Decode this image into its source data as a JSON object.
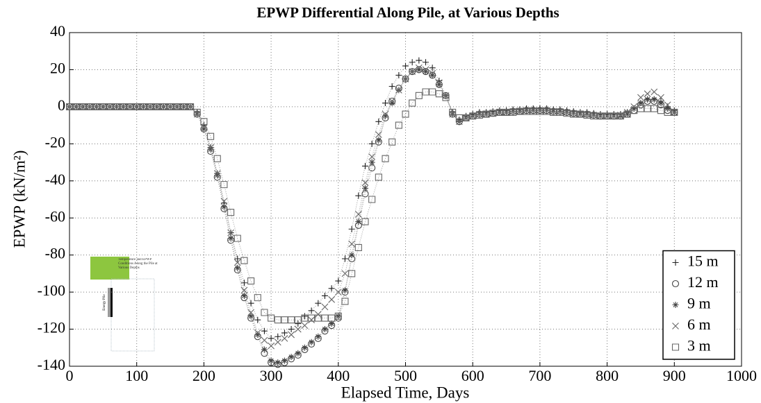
{
  "chart_data": {
    "type": "scatter_line",
    "title": "EPWP Differential Along Pile, at Various Depths",
    "xlabel": "Elapsed Time, Days",
    "ylabel": "EPWP (kN/m²)",
    "xlim": [
      0,
      1000
    ],
    "xticks": [
      0,
      100,
      200,
      300,
      400,
      500,
      600,
      700,
      800,
      900,
      1000
    ],
    "ylim": [
      -140,
      40
    ],
    "yticks": [
      -140,
      -120,
      -100,
      -80,
      -60,
      -40,
      -20,
      0,
      20,
      40
    ],
    "grid": true,
    "legend": "lower right",
    "x": [
      0,
      10,
      20,
      30,
      40,
      50,
      60,
      70,
      80,
      90,
      100,
      110,
      120,
      130,
      140,
      150,
      160,
      170,
      180,
      190,
      200,
      210,
      220,
      230,
      240,
      250,
      260,
      270,
      280,
      290,
      300,
      310,
      320,
      330,
      340,
      350,
      360,
      370,
      380,
      390,
      400,
      410,
      420,
      430,
      440,
      450,
      460,
      470,
      480,
      490,
      500,
      510,
      520,
      530,
      540,
      550,
      560,
      570,
      580,
      590,
      600,
      610,
      620,
      630,
      640,
      650,
      660,
      670,
      680,
      690,
      700,
      710,
      720,
      730,
      740,
      750,
      760,
      770,
      780,
      790,
      800,
      810,
      820,
      830,
      840,
      850,
      860,
      870,
      880,
      890,
      900
    ],
    "series": [
      {
        "name": "15 m",
        "color": "#222222",
        "marker": "plus",
        "values": [
          0,
          0,
          0,
          0,
          0,
          0,
          0,
          0,
          0,
          0,
          0,
          0,
          0,
          0,
          0,
          0,
          0,
          0,
          0,
          -3,
          -10,
          -22,
          -36,
          -52,
          -68,
          -82,
          -95,
          -106,
          -115,
          -121,
          -125,
          -124,
          -122,
          -120,
          -117,
          -113,
          -110,
          -106,
          -102,
          -98,
          -94,
          -82,
          -66,
          -48,
          -32,
          -20,
          -8,
          2,
          11,
          17,
          22,
          24,
          25,
          24,
          21,
          14,
          6,
          -3,
          -7,
          -5,
          -4,
          -3,
          -3,
          -2.5,
          -2,
          -2,
          -1.5,
          -1.5,
          -1,
          -1,
          -1,
          -1,
          -1.5,
          -1.5,
          -2,
          -2.5,
          -3,
          -3,
          -3.5,
          -4,
          -4,
          -4,
          -4,
          -3,
          -1,
          2,
          4,
          4,
          3,
          0,
          -2
        ]
      },
      {
        "name": "12 m",
        "color": "#444444",
        "marker": "circle",
        "values": [
          0,
          0,
          0,
          0,
          0,
          0,
          0,
          0,
          0,
          0,
          0,
          0,
          0,
          0,
          0,
          0,
          0,
          0,
          0,
          -4,
          -12,
          -24,
          -38,
          -55,
          -72,
          -88,
          -103,
          -114,
          -124,
          -133,
          -138,
          -139,
          -138,
          -136,
          -134,
          -131,
          -128,
          -125,
          -121,
          -118,
          -114,
          -100,
          -82,
          -64,
          -47,
          -33,
          -19,
          -6,
          3,
          10,
          15,
          19,
          20,
          19,
          17,
          12,
          6,
          -4,
          -8,
          -6,
          -5,
          -4,
          -4,
          -3.5,
          -3,
          -3,
          -2.5,
          -2.5,
          -2,
          -2,
          -2,
          -2,
          -2.5,
          -2.5,
          -3,
          -3.5,
          -4,
          -4,
          -4.5,
          -5,
          -5,
          -5,
          -5,
          -4,
          -2,
          1,
          3,
          3,
          1,
          -2,
          -3
        ]
      },
      {
        "name": "9 m",
        "color": "#444444",
        "marker": "star",
        "values": [
          0,
          0,
          0,
          0,
          0,
          0,
          0,
          0,
          0,
          0,
          0,
          0,
          0,
          0,
          0,
          0,
          0,
          0,
          0,
          -4,
          -12,
          -23,
          -37,
          -54,
          -71,
          -87,
          -102,
          -113,
          -123,
          -131,
          -137,
          -138,
          -137,
          -135,
          -133,
          -130,
          -127,
          -124,
          -120,
          -117,
          -113,
          -99,
          -80,
          -62,
          -44,
          -30,
          -18,
          -5,
          2,
          9,
          15,
          19,
          20,
          19,
          17,
          12,
          6,
          -4,
          -8,
          -6,
          -5,
          -4,
          -4,
          -3.5,
          -3,
          -3,
          -2.5,
          -2.5,
          -2,
          -2,
          -2,
          -2,
          -2.5,
          -2.5,
          -3,
          -3.5,
          -4,
          -4,
          -4.5,
          -5,
          -5,
          -5,
          -5,
          -4,
          -1,
          2,
          4,
          4,
          2,
          -1,
          -3
        ]
      },
      {
        "name": "6 m",
        "color": "#666666",
        "marker": "cross",
        "values": [
          0,
          0,
          0,
          0,
          0,
          0,
          0,
          0,
          0,
          0,
          0,
          0,
          0,
          0,
          0,
          0,
          0,
          0,
          0,
          -4,
          -11,
          -22,
          -36,
          -51,
          -68,
          -84,
          -99,
          -111,
          -122,
          -126,
          -129,
          -127,
          -125,
          -123,
          -120,
          -118,
          -115,
          -112,
          -108,
          -104,
          -100,
          -90,
          -74,
          -58,
          -41,
          -27,
          -15,
          -4,
          3,
          9,
          15,
          19,
          21,
          20,
          18,
          13,
          6,
          -4,
          -8,
          -6,
          -5,
          -4,
          -4,
          -3.5,
          -3,
          -3,
          -2.5,
          -2.5,
          -2,
          -2,
          -2,
          -2,
          -2.5,
          -2.5,
          -3,
          -3.5,
          -4,
          -4,
          -4.5,
          -5,
          -5,
          -5,
          -4.5,
          -3,
          0,
          5,
          7,
          8,
          5,
          1,
          -3
        ]
      },
      {
        "name": "3 m",
        "color": "#666666",
        "marker": "square",
        "values": [
          0,
          0,
          0,
          0,
          0,
          0,
          0,
          0,
          0,
          0,
          0,
          0,
          0,
          0,
          0,
          0,
          0,
          0,
          0,
          -3,
          -8,
          -16,
          -28,
          -42,
          -57,
          -71,
          -83,
          -94,
          -103,
          -111,
          -114,
          -115,
          -115,
          -115,
          -115,
          -114,
          -114,
          -114,
          -114,
          -114,
          -113,
          -105,
          -90,
          -76,
          -62,
          -50,
          -38,
          -28,
          -19,
          -10,
          -4,
          2,
          6,
          8,
          8,
          7,
          5,
          -3,
          -6,
          -6,
          -5,
          -4.5,
          -4,
          -3.5,
          -3,
          -3,
          -3,
          -2.5,
          -2.5,
          -2.5,
          -2.5,
          -2.5,
          -3,
          -3,
          -3.5,
          -4,
          -4,
          -4.5,
          -5,
          -5,
          -5,
          -5,
          -5,
          -4,
          -2,
          -1,
          -1,
          -1,
          -2,
          -3,
          -3
        ]
      }
    ]
  },
  "inset": {
    "title": "Temperature and EPWP Conditions Along the Pile at Various Depths",
    "label": "Energy Pile"
  }
}
